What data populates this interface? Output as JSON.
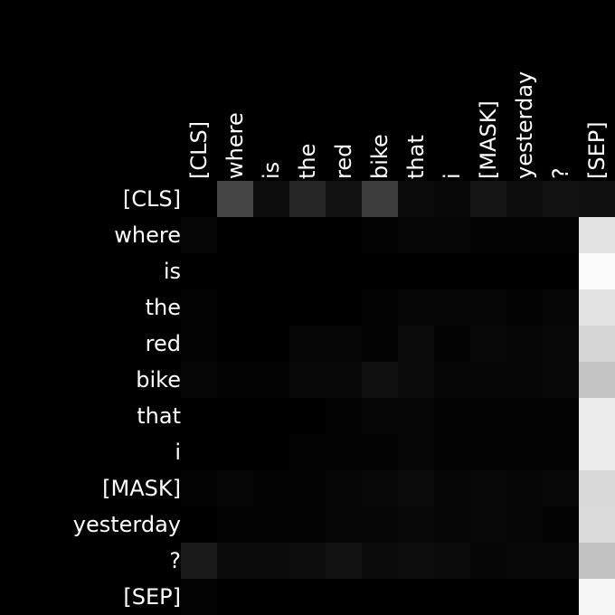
{
  "chart_data": {
    "type": "heatmap",
    "title": "",
    "xlabel": "",
    "ylabel": "",
    "x_tokens": [
      "[CLS]",
      "where",
      "is",
      "the",
      "red",
      "bike",
      "that",
      "i",
      "[MASK]",
      "yesterday",
      "?",
      "[SEP]"
    ],
    "y_tokens": [
      "[CLS]",
      "where",
      "is",
      "the",
      "red",
      "bike",
      "that",
      "i",
      "[MASK]",
      "yesterday",
      "?",
      "[SEP]"
    ],
    "value_range": [
      0,
      1
    ],
    "colormap": "grayscale black-to-white",
    "values": [
      [
        0.0,
        0.27,
        0.05,
        0.15,
        0.07,
        0.24,
        0.04,
        0.03,
        0.08,
        0.05,
        0.07,
        0.06
      ],
      [
        0.02,
        0.0,
        0.0,
        0.0,
        0.0,
        0.01,
        0.02,
        0.02,
        0.01,
        0.01,
        0.01,
        0.89
      ],
      [
        0.0,
        0.0,
        0.0,
        0.0,
        0.0,
        0.0,
        0.0,
        0.0,
        0.0,
        0.0,
        0.0,
        0.98
      ],
      [
        0.01,
        0.0,
        0.0,
        0.0,
        0.0,
        0.01,
        0.02,
        0.02,
        0.02,
        0.01,
        0.02,
        0.89
      ],
      [
        0.01,
        0.0,
        0.0,
        0.02,
        0.02,
        0.01,
        0.04,
        0.01,
        0.03,
        0.02,
        0.03,
        0.84
      ],
      [
        0.02,
        0.01,
        0.01,
        0.03,
        0.03,
        0.06,
        0.04,
        0.02,
        0.02,
        0.02,
        0.03,
        0.77
      ],
      [
        0.0,
        0.0,
        0.0,
        0.0,
        0.01,
        0.02,
        0.02,
        0.01,
        0.01,
        0.01,
        0.01,
        0.92
      ],
      [
        0.0,
        0.0,
        0.0,
        0.01,
        0.01,
        0.01,
        0.02,
        0.01,
        0.01,
        0.01,
        0.01,
        0.92
      ],
      [
        0.01,
        0.02,
        0.01,
        0.01,
        0.02,
        0.03,
        0.04,
        0.02,
        0.03,
        0.02,
        0.03,
        0.85
      ],
      [
        0.0,
        0.01,
        0.01,
        0.01,
        0.02,
        0.02,
        0.03,
        0.02,
        0.03,
        0.02,
        0.01,
        0.86
      ],
      [
        0.1,
        0.04,
        0.04,
        0.05,
        0.07,
        0.04,
        0.05,
        0.04,
        0.02,
        0.03,
        0.03,
        0.76
      ],
      [
        0.01,
        0.0,
        0.0,
        0.0,
        0.0,
        0.0,
        0.0,
        0.0,
        0.0,
        0.0,
        0.0,
        0.96
      ]
    ]
  }
}
